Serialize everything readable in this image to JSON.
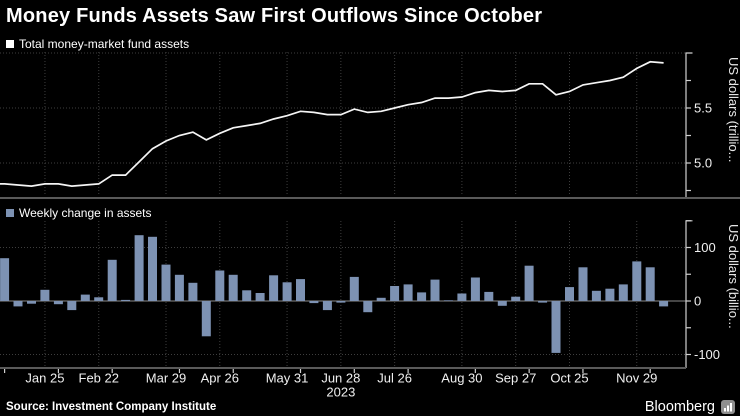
{
  "title": "Money Funds Assets Saw First Outflows Since October",
  "source": "Source: Investment Company Institute",
  "brand": {
    "name": "Bloomberg",
    "logo_icon": "bar-chart-icon"
  },
  "colors": {
    "background": "#000000",
    "line": "#f5f5f5",
    "bar": "#7d92b3",
    "grid": "#3e3e3e",
    "axis": "#d0d0d0",
    "frame": "#5a5a5a",
    "zero_line": "#8a8a8a",
    "text": "#f0f0f0"
  },
  "chart_data": [
    {
      "type": "line",
      "legend": "Total money-market fund assets",
      "unit_label": "US dollars (trillio...",
      "grid": "dotted",
      "legend_position": "top-left",
      "x": [
        "Jan 4",
        "Jan 11",
        "Jan 18",
        "Jan 25",
        "Feb 1",
        "Feb 8",
        "Feb 15",
        "Feb 22",
        "Mar 1",
        "Mar 8",
        "Mar 15",
        "Mar 22",
        "Mar 29",
        "Apr 5",
        "Apr 12",
        "Apr 19",
        "Apr 26",
        "May 3",
        "May 10",
        "May 17",
        "May 24",
        "May 31",
        "Jun 7",
        "Jun 14",
        "Jun 21",
        "Jun 28",
        "Jul 5",
        "Jul 12",
        "Jul 19",
        "Jul 26",
        "Aug 2",
        "Aug 9",
        "Aug 16",
        "Aug 23",
        "Aug 30",
        "Sep 6",
        "Sep 13",
        "Sep 20",
        "Sep 27",
        "Oct 4",
        "Oct 11",
        "Oct 18",
        "Oct 25",
        "Nov 1",
        "Nov 8",
        "Nov 15",
        "Nov 22",
        "Nov 29",
        "Dec 6",
        "Dec 13"
      ],
      "values": [
        4.81,
        4.8,
        4.79,
        4.81,
        4.81,
        4.79,
        4.8,
        4.81,
        4.89,
        4.89,
        5.01,
        5.13,
        5.2,
        5.25,
        5.28,
        5.21,
        5.27,
        5.32,
        5.34,
        5.36,
        5.4,
        5.43,
        5.47,
        5.46,
        5.44,
        5.44,
        5.49,
        5.46,
        5.47,
        5.5,
        5.53,
        5.55,
        5.59,
        5.59,
        5.6,
        5.64,
        5.66,
        5.65,
        5.66,
        5.72,
        5.72,
        5.62,
        5.65,
        5.71,
        5.73,
        5.75,
        5.78,
        5.86,
        5.92,
        5.91
      ],
      "ylim": [
        4.69,
        6.03
      ],
      "grid_y": [
        5.0,
        5.5,
        6.0
      ],
      "yticks": [
        4.75,
        5.0,
        5.25,
        5.5,
        5.75
      ],
      "yticks_labeled": [
        5.0,
        5.5
      ],
      "xticks": [
        {
          "label": "Jan 25",
          "index": 3
        },
        {
          "label": "Feb 22",
          "index": 7
        },
        {
          "label": "Mar 29",
          "index": 12
        },
        {
          "label": "Apr 26",
          "index": 16
        },
        {
          "label": "May 31",
          "index": 21
        },
        {
          "label": "Jun 28",
          "index": 25
        },
        {
          "label": "Jul 26",
          "index": 29
        },
        {
          "label": "Aug 30",
          "index": 34
        },
        {
          "label": "Sep 27",
          "index": 38
        },
        {
          "label": "Oct 25",
          "index": 42
        },
        {
          "label": "Nov 29",
          "index": 47
        }
      ]
    },
    {
      "type": "bar",
      "legend": "Weekly change in assets",
      "unit_label": "US dollars (billio...",
      "grid": "dotted",
      "legend_position": "top-left",
      "x": [
        "Jan 4",
        "Jan 11",
        "Jan 18",
        "Jan 25",
        "Feb 1",
        "Feb 8",
        "Feb 15",
        "Feb 22",
        "Mar 1",
        "Mar 8",
        "Mar 15",
        "Mar 22",
        "Mar 29",
        "Apr 5",
        "Apr 12",
        "Apr 19",
        "Apr 26",
        "May 3",
        "May 10",
        "May 17",
        "May 24",
        "May 31",
        "Jun 7",
        "Jun 14",
        "Jun 21",
        "Jun 28",
        "Jul 5",
        "Jul 12",
        "Jul 19",
        "Jul 26",
        "Aug 2",
        "Aug 9",
        "Aug 16",
        "Aug 23",
        "Aug 30",
        "Sep 6",
        "Sep 13",
        "Sep 20",
        "Sep 27",
        "Oct 4",
        "Oct 11",
        "Oct 18",
        "Oct 25",
        "Nov 1",
        "Nov 8",
        "Nov 15",
        "Nov 22",
        "Nov 29",
        "Dec 6",
        "Dec 13"
      ],
      "values": [
        80,
        -10,
        -5,
        21,
        -6,
        -17,
        12,
        7,
        77,
        2,
        123,
        120,
        68,
        49,
        34,
        -66,
        57,
        49,
        20,
        15,
        48,
        35,
        41,
        -4,
        -17,
        -3,
        45,
        -21,
        6,
        28,
        31,
        16,
        40,
        1,
        14,
        44,
        17,
        -9,
        8,
        66,
        -3,
        -97,
        26,
        63,
        19,
        23,
        31,
        74,
        63,
        -10
      ],
      "ylim": [
        -125,
        150
      ],
      "grid_y": [
        100,
        -100
      ],
      "yticks": [
        150,
        100,
        50,
        0,
        -50,
        -100
      ],
      "yticks_labeled": [
        100,
        0,
        -100
      ],
      "xticks": [
        {
          "label": "Jan 25",
          "index": 3
        },
        {
          "label": "Feb 22",
          "index": 7
        },
        {
          "label": "Mar 29",
          "index": 12
        },
        {
          "label": "Apr 26",
          "index": 16
        },
        {
          "label": "May 31",
          "index": 21
        },
        {
          "label": "Jun 28",
          "index": 25
        },
        {
          "label": "Jul 26",
          "index": 29
        },
        {
          "label": "Aug 30",
          "index": 34
        },
        {
          "label": "Sep 27",
          "index": 38
        },
        {
          "label": "Oct 25",
          "index": 42
        },
        {
          "label": "Nov 29",
          "index": 47
        }
      ],
      "x_minor_tick_indices": [
        0,
        4,
        8,
        13,
        17,
        22,
        26,
        30,
        35,
        39,
        43,
        48
      ],
      "year_label": "2023",
      "year_label_index": 25
    }
  ]
}
